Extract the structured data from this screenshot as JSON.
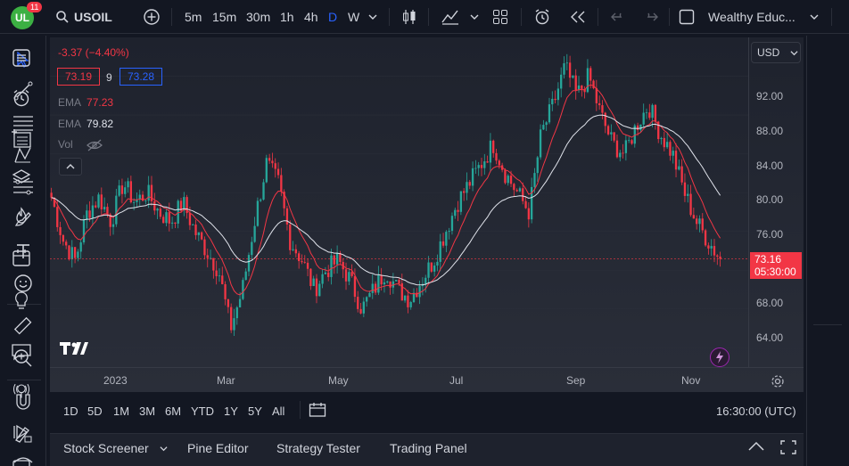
{
  "topbar": {
    "logo_text": "UL",
    "notifications": "11",
    "symbol": "USOIL",
    "intervals": [
      "5m",
      "15m",
      "30m",
      "1h",
      "4h",
      "D",
      "W"
    ],
    "active_interval": "D",
    "layout_name": "Wealthy Educ..."
  },
  "legend": {
    "change": "-3.37 (−4.40%)",
    "bid": "73.19",
    "spread": "9",
    "ask": "73.28",
    "ema1_label": "EMA",
    "ema1_value": "77.23",
    "ema2_label": "EMA",
    "ema2_value": "79.82",
    "vol_label": "Vol"
  },
  "price_scale": {
    "currency": "USD",
    "ticks": [
      "92.00",
      "88.00",
      "84.00",
      "80.00",
      "76.00",
      "68.00",
      "64.00"
    ],
    "last_price": "73.16",
    "countdown": "05:30:00"
  },
  "time_scale": {
    "ticks": [
      "2023",
      "Mar",
      "May",
      "Jul",
      "Sep",
      "Nov"
    ]
  },
  "ranges": [
    "1D",
    "5D",
    "1M",
    "3M",
    "6M",
    "YTD",
    "1Y",
    "5Y",
    "All"
  ],
  "clock": "16:30:00 (UTC)",
  "bottom_panel": {
    "tabs": [
      "Stock Screener",
      "Pine Editor",
      "Strategy Tester",
      "Trading Panel"
    ]
  },
  "colors": {
    "up": "#26a69a",
    "down": "#f23645",
    "ema_fast": "#f23645",
    "ema_slow": "#e0e3eb",
    "accent": "#2962ff"
  },
  "chart_data": {
    "type": "candlestick",
    "series_note": "",
    "ylim": [
      62,
      96
    ],
    "x": [
      "2023",
      "Mar",
      "May",
      "Jul",
      "Sep",
      "Nov"
    ],
    "close_path": [
      79.5,
      75,
      73,
      78,
      79.5,
      77,
      81,
      79,
      80,
      78,
      77,
      79,
      76,
      74,
      72,
      66,
      70,
      77,
      83,
      81,
      75,
      73,
      70,
      72,
      73,
      71,
      68,
      70,
      72,
      70,
      69,
      71,
      73,
      76,
      79,
      81,
      83,
      85,
      82,
      80,
      78,
      86,
      89,
      93,
      90,
      92,
      88,
      85,
      84,
      87,
      89,
      86,
      84,
      80,
      77,
      75,
      73.16
    ],
    "ema_fast_last": 77.23,
    "ema_slow_last": 79.82
  }
}
